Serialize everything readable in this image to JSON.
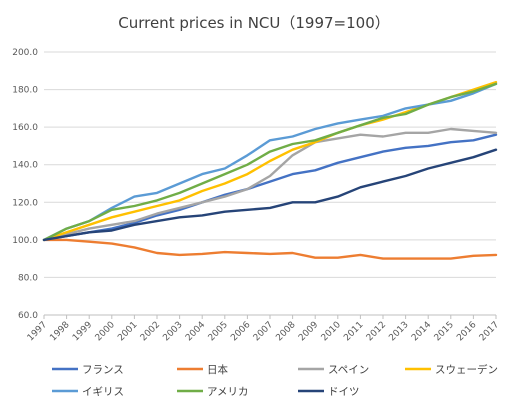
{
  "chart_data": {
    "type": "line",
    "title": "Current prices in NCU（1997=100）",
    "xlabel": "",
    "ylabel": "",
    "ylim": [
      60,
      200
    ],
    "yticks": [
      "60.0",
      "80.0",
      "100.0",
      "120.0",
      "140.0",
      "160.0",
      "180.0",
      "200.0"
    ],
    "grid": true,
    "legend_position": "bottom",
    "x": [
      "1997",
      "1998",
      "1999",
      "2000",
      "2001",
      "2002",
      "2003",
      "2004",
      "2005",
      "2006",
      "2007",
      "2008",
      "2009",
      "2010",
      "2011",
      "2012",
      "2013",
      "2014",
      "2015",
      "2016",
      "2017"
    ],
    "series": [
      {
        "name": "フランス",
        "color": "#4472c4",
        "values": [
          100,
          102,
          104,
          106,
          109,
          113,
          116,
          120,
          124,
          127,
          131,
          135,
          137,
          141,
          144,
          147,
          149,
          150,
          152,
          153,
          156
        ]
      },
      {
        "name": "日本",
        "color": "#ed7d31",
        "values": [
          100,
          100,
          99,
          98,
          96,
          93,
          92,
          92.5,
          93.5,
          93,
          92.5,
          93,
          90.5,
          90.5,
          92,
          90,
          90,
          90,
          90,
          91.5,
          92
        ]
      },
      {
        "name": "スペイン",
        "color": "#a5a5a5",
        "values": [
          100,
          103,
          106,
          108,
          110,
          114,
          117,
          120,
          123,
          127,
          134,
          145,
          152,
          154,
          156,
          155,
          157,
          157,
          159,
          158,
          157
        ]
      },
      {
        "name": "スウェーデン",
        "color": "#ffc000",
        "values": [
          100,
          104,
          108,
          112,
          115,
          118,
          121,
          126,
          130,
          135,
          142,
          148,
          152,
          157,
          161,
          164,
          168,
          172,
          176,
          180,
          184
        ]
      },
      {
        "name": "イギリス",
        "color": "#5b9bd5",
        "values": [
          100,
          106,
          110,
          117,
          123,
          125,
          130,
          135,
          138,
          145,
          153,
          155,
          159,
          162,
          164,
          166,
          170,
          172,
          174,
          178,
          183
        ]
      },
      {
        "name": "アメリカ",
        "color": "#70ad47",
        "values": [
          100,
          106,
          110,
          116,
          118,
          121,
          125,
          130,
          135,
          140,
          147,
          151,
          153,
          157,
          161,
          165,
          167,
          172,
          176,
          179,
          183
        ]
      },
      {
        "name": "ドイツ",
        "color": "#264478",
        "values": [
          100,
          102,
          104,
          105,
          108,
          110,
          112,
          113,
          115,
          116,
          117,
          120,
          120,
          123,
          128,
          131,
          134,
          138,
          141,
          144,
          148
        ]
      }
    ]
  }
}
